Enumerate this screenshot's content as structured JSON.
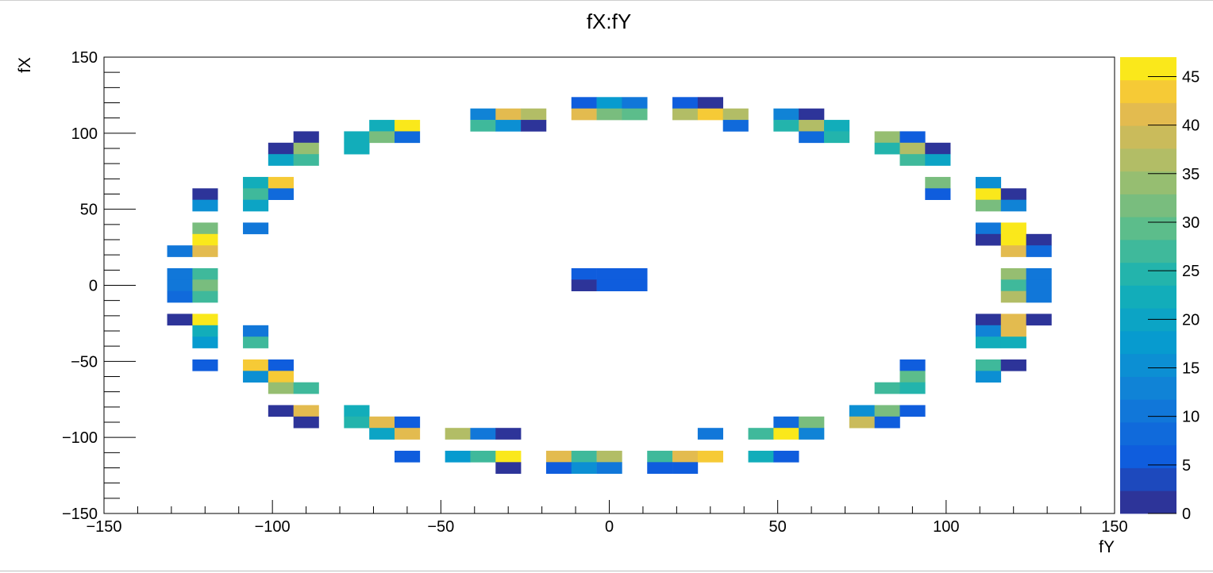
{
  "chart_data": {
    "type": "heatmap",
    "title": "fX:fY",
    "xlabel": "fY",
    "ylabel": "fX",
    "xlim": [
      -150,
      150
    ],
    "ylim": [
      -150,
      150
    ],
    "bin_width": 7.5,
    "x_ticks": [
      "−150",
      "−100",
      "−50",
      "0",
      "50",
      "100",
      "150"
    ],
    "y_ticks": [
      "−150",
      "−100",
      "−50",
      "0",
      "50",
      "100",
      "150"
    ],
    "colorbar": {
      "min": 0,
      "max": 47,
      "ticks": [
        "0",
        "5",
        "10",
        "15",
        "20",
        "25",
        "30",
        "35",
        "40",
        "45"
      ],
      "palette": "parula"
    },
    "cells": [
      {
        "x": -7.5,
        "y": 120,
        "z": 5
      },
      {
        "x": 0,
        "y": 120,
        "z": 17
      },
      {
        "x": 7.5,
        "y": 120,
        "z": 10
      },
      {
        "x": 22.5,
        "y": 120,
        "z": 6
      },
      {
        "x": 30,
        "y": 120,
        "z": 2
      },
      {
        "x": -37.5,
        "y": 112.5,
        "z": 12
      },
      {
        "x": -30,
        "y": 112.5,
        "z": 41
      },
      {
        "x": -22.5,
        "y": 112.5,
        "z": 36
      },
      {
        "x": -7.5,
        "y": 112.5,
        "z": 42
      },
      {
        "x": 0,
        "y": 112.5,
        "z": 32
      },
      {
        "x": 7.5,
        "y": 112.5,
        "z": 30
      },
      {
        "x": 22.5,
        "y": 112.5,
        "z": 36
      },
      {
        "x": 30,
        "y": 112.5,
        "z": 43
      },
      {
        "x": 37.5,
        "y": 112.5,
        "z": 37
      },
      {
        "x": 52.5,
        "y": 112.5,
        "z": 14
      },
      {
        "x": 60,
        "y": 112.5,
        "z": 2
      },
      {
        "x": -67.5,
        "y": 105,
        "z": 22
      },
      {
        "x": -60,
        "y": 105,
        "z": 46
      },
      {
        "x": -37.5,
        "y": 105,
        "z": 28
      },
      {
        "x": -30,
        "y": 105,
        "z": 15
      },
      {
        "x": -22.5,
        "y": 105,
        "z": 2
      },
      {
        "x": 37.5,
        "y": 105,
        "z": 9
      },
      {
        "x": 52.5,
        "y": 105,
        "z": 25
      },
      {
        "x": 60,
        "y": 105,
        "z": 36
      },
      {
        "x": 67.5,
        "y": 105,
        "z": 23
      },
      {
        "x": -90,
        "y": 97.5,
        "z": 2
      },
      {
        "x": -75,
        "y": 97.5,
        "z": 22
      },
      {
        "x": -67.5,
        "y": 97.5,
        "z": 32
      },
      {
        "x": -60,
        "y": 97.5,
        "z": 8
      },
      {
        "x": 60,
        "y": 97.5,
        "z": 9
      },
      {
        "x": 67.5,
        "y": 97.5,
        "z": 25
      },
      {
        "x": 82.5,
        "y": 97.5,
        "z": 33
      },
      {
        "x": 90,
        "y": 97.5,
        "z": 6
      },
      {
        "x": -97.5,
        "y": 90,
        "z": 2
      },
      {
        "x": -90,
        "y": 90,
        "z": 33
      },
      {
        "x": -75,
        "y": 90,
        "z": 23
      },
      {
        "x": 82.5,
        "y": 90,
        "z": 25
      },
      {
        "x": 90,
        "y": 90,
        "z": 37
      },
      {
        "x": 97.5,
        "y": 90,
        "z": 2
      },
      {
        "x": -97.5,
        "y": 82.5,
        "z": 21
      },
      {
        "x": -90,
        "y": 82.5,
        "z": 28
      },
      {
        "x": 90,
        "y": 82.5,
        "z": 28
      },
      {
        "x": 97.5,
        "y": 82.5,
        "z": 21
      },
      {
        "x": -105,
        "y": 67.5,
        "z": 22
      },
      {
        "x": -97.5,
        "y": 67.5,
        "z": 43
      },
      {
        "x": 97.5,
        "y": 67.5,
        "z": 32
      },
      {
        "x": 112.5,
        "y": 67.5,
        "z": 16
      },
      {
        "x": -120,
        "y": 60,
        "z": 2
      },
      {
        "x": -105,
        "y": 60,
        "z": 28
      },
      {
        "x": -97.5,
        "y": 60,
        "z": 8
      },
      {
        "x": 97.5,
        "y": 60,
        "z": 7
      },
      {
        "x": 112.5,
        "y": 60,
        "z": 46
      },
      {
        "x": 120,
        "y": 60,
        "z": 2
      },
      {
        "x": -120,
        "y": 52.5,
        "z": 16
      },
      {
        "x": -105,
        "y": 52.5,
        "z": 21
      },
      {
        "x": 112.5,
        "y": 52.5,
        "z": 31
      },
      {
        "x": 120,
        "y": 52.5,
        "z": 14
      },
      {
        "x": -120,
        "y": 37.5,
        "z": 32
      },
      {
        "x": -105,
        "y": 37.5,
        "z": 10
      },
      {
        "x": 112.5,
        "y": 37.5,
        "z": 10
      },
      {
        "x": 120,
        "y": 37.5,
        "z": 47
      },
      {
        "x": -120,
        "y": 30,
        "z": 46
      },
      {
        "x": 112.5,
        "y": 30,
        "z": 2
      },
      {
        "x": 120,
        "y": 30,
        "z": 47
      },
      {
        "x": 127.5,
        "y": 30,
        "z": 2
      },
      {
        "x": -127.5,
        "y": 22.5,
        "z": 10
      },
      {
        "x": -120,
        "y": 22.5,
        "z": 41
      },
      {
        "x": 120,
        "y": 22.5,
        "z": 42
      },
      {
        "x": 127.5,
        "y": 22.5,
        "z": 9
      },
      {
        "x": -127.5,
        "y": 7.5,
        "z": 11
      },
      {
        "x": -120,
        "y": 7.5,
        "z": 27
      },
      {
        "x": -7.5,
        "y": 7.5,
        "z": 6
      },
      {
        "x": 0,
        "y": 7.5,
        "z": 6
      },
      {
        "x": 7.5,
        "y": 7.5,
        "z": 6
      },
      {
        "x": 120,
        "y": 7.5,
        "z": 35
      },
      {
        "x": 127.5,
        "y": 7.5,
        "z": 11
      },
      {
        "x": -127.5,
        "y": 0,
        "z": 11
      },
      {
        "x": -120,
        "y": 0,
        "z": 31
      },
      {
        "x": -7.5,
        "y": 0,
        "z": 2
      },
      {
        "x": 0,
        "y": 0,
        "z": 6
      },
      {
        "x": 7.5,
        "y": 0,
        "z": 6
      },
      {
        "x": 120,
        "y": 0,
        "z": 28
      },
      {
        "x": 127.5,
        "y": 0,
        "z": 11
      },
      {
        "x": -127.5,
        "y": -7.5,
        "z": 9
      },
      {
        "x": -120,
        "y": -7.5,
        "z": 28
      },
      {
        "x": 120,
        "y": -7.5,
        "z": 37
      },
      {
        "x": 127.5,
        "y": -7.5,
        "z": 11
      },
      {
        "x": -127.5,
        "y": -22.5,
        "z": 2
      },
      {
        "x": -120,
        "y": -22.5,
        "z": 47
      },
      {
        "x": 112.5,
        "y": -22.5,
        "z": 2
      },
      {
        "x": 120,
        "y": -22.5,
        "z": 42
      },
      {
        "x": 127.5,
        "y": -22.5,
        "z": 2
      },
      {
        "x": -120,
        "y": -30,
        "z": 23
      },
      {
        "x": -105,
        "y": -30,
        "z": 10
      },
      {
        "x": 112.5,
        "y": -30,
        "z": 12
      },
      {
        "x": 120,
        "y": -30,
        "z": 40
      },
      {
        "x": -120,
        "y": -37.5,
        "z": 17
      },
      {
        "x": -105,
        "y": -37.5,
        "z": 26
      },
      {
        "x": 112.5,
        "y": -37.5,
        "z": 22
      },
      {
        "x": 120,
        "y": -37.5,
        "z": 22
      },
      {
        "x": -120,
        "y": -52.5,
        "z": 6
      },
      {
        "x": -105,
        "y": -52.5,
        "z": 43
      },
      {
        "x": -97.5,
        "y": -52.5,
        "z": 6
      },
      {
        "x": 90,
        "y": -52.5,
        "z": 6
      },
      {
        "x": 112.5,
        "y": -52.5,
        "z": 27
      },
      {
        "x": 120,
        "y": -52.5,
        "z": 2
      },
      {
        "x": -105,
        "y": -60,
        "z": 15
      },
      {
        "x": -97.5,
        "y": -60,
        "z": 43
      },
      {
        "x": 90,
        "y": -60,
        "z": 30
      },
      {
        "x": 112.5,
        "y": -60,
        "z": 15
      },
      {
        "x": -97.5,
        "y": -67.5,
        "z": 34
      },
      {
        "x": -90,
        "y": -67.5,
        "z": 28
      },
      {
        "x": 82.5,
        "y": -67.5,
        "z": 28
      },
      {
        "x": 90,
        "y": -67.5,
        "z": 25
      },
      {
        "x": -97.5,
        "y": -82.5,
        "z": 2
      },
      {
        "x": -90,
        "y": -82.5,
        "z": 42
      },
      {
        "x": -75,
        "y": -82.5,
        "z": 22
      },
      {
        "x": 75,
        "y": -82.5,
        "z": 15
      },
      {
        "x": 82.5,
        "y": -82.5,
        "z": 32
      },
      {
        "x": 90,
        "y": -82.5,
        "z": 7
      },
      {
        "x": -90,
        "y": -90,
        "z": 2
      },
      {
        "x": -75,
        "y": -90,
        "z": 25
      },
      {
        "x": -67.5,
        "y": -90,
        "z": 40
      },
      {
        "x": -60,
        "y": -90,
        "z": 6
      },
      {
        "x": 52.5,
        "y": -90,
        "z": 8
      },
      {
        "x": 60,
        "y": -90,
        "z": 32
      },
      {
        "x": 75,
        "y": -90,
        "z": 39
      },
      {
        "x": 82.5,
        "y": -90,
        "z": 6
      },
      {
        "x": -67.5,
        "y": -97.5,
        "z": 21
      },
      {
        "x": -60,
        "y": -97.5,
        "z": 42
      },
      {
        "x": -45,
        "y": -97.5,
        "z": 36
      },
      {
        "x": -37.5,
        "y": -97.5,
        "z": 11
      },
      {
        "x": -30,
        "y": -97.5,
        "z": 2
      },
      {
        "x": 30,
        "y": -97.5,
        "z": 10
      },
      {
        "x": 45,
        "y": -97.5,
        "z": 26
      },
      {
        "x": 52.5,
        "y": -97.5,
        "z": 46
      },
      {
        "x": 60,
        "y": -97.5,
        "z": 13
      },
      {
        "x": -60,
        "y": -112.5,
        "z": 7
      },
      {
        "x": -45,
        "y": -112.5,
        "z": 18
      },
      {
        "x": -37.5,
        "y": -112.5,
        "z": 26
      },
      {
        "x": -30,
        "y": -112.5,
        "z": 46
      },
      {
        "x": -15,
        "y": -112.5,
        "z": 42
      },
      {
        "x": -7.5,
        "y": -112.5,
        "z": 28
      },
      {
        "x": 0,
        "y": -112.5,
        "z": 37
      },
      {
        "x": 15,
        "y": -112.5,
        "z": 26
      },
      {
        "x": 22.5,
        "y": -112.5,
        "z": 40
      },
      {
        "x": 30,
        "y": -112.5,
        "z": 43
      },
      {
        "x": 45,
        "y": -112.5,
        "z": 23
      },
      {
        "x": 52.5,
        "y": -112.5,
        "z": 7
      },
      {
        "x": -30,
        "y": -120,
        "z": 2
      },
      {
        "x": -15,
        "y": -120,
        "z": 7
      },
      {
        "x": -7.5,
        "y": -120,
        "z": 16
      },
      {
        "x": 0,
        "y": -120,
        "z": 11
      },
      {
        "x": 15,
        "y": -120,
        "z": 6
      },
      {
        "x": 22.5,
        "y": -120,
        "z": 5
      }
    ]
  }
}
